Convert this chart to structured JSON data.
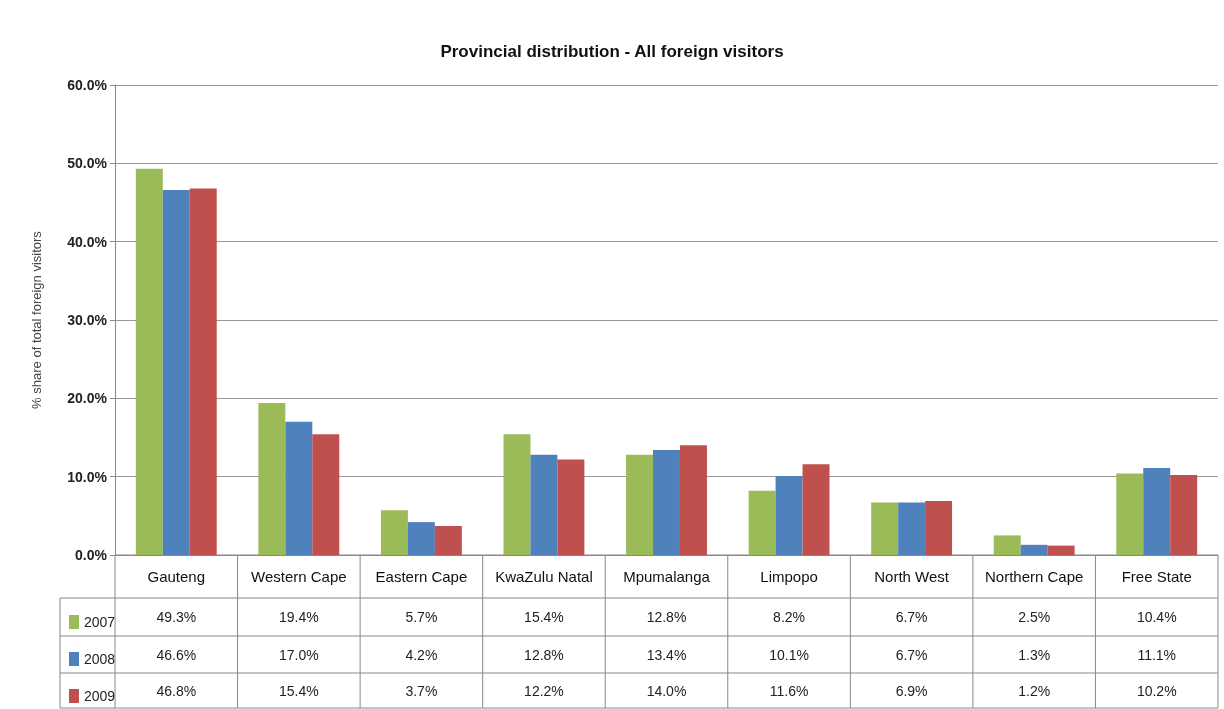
{
  "chart_data": {
    "type": "bar",
    "title": "Provincial distribution - All foreign visitors",
    "ylabel": "% share of total foreign visitors",
    "categories": [
      "Gauteng",
      "Western Cape",
      "Eastern Cape",
      "KwaZulu Natal",
      "Mpumalanga",
      "Limpopo",
      "North West",
      "Northern Cape",
      "Free State"
    ],
    "series": [
      {
        "name": "2007",
        "color": "#9bbb59",
        "values": [
          49.3,
          19.4,
          5.7,
          15.4,
          12.8,
          8.2,
          6.7,
          2.5,
          10.4
        ],
        "value_labels": [
          "49.3%",
          "19.4%",
          "5.7%",
          "15.4%",
          "12.8%",
          "8.2%",
          "6.7%",
          "2.5%",
          "10.4%"
        ]
      },
      {
        "name": "2008",
        "color": "#4f81bd",
        "values": [
          46.6,
          17.0,
          4.2,
          12.8,
          13.4,
          10.1,
          6.7,
          1.3,
          11.1
        ],
        "value_labels": [
          "46.6%",
          "17.0%",
          "4.2%",
          "12.8%",
          "13.4%",
          "10.1%",
          "6.7%",
          "1.3%",
          "11.1%"
        ]
      },
      {
        "name": "2009",
        "color": "#c0504d",
        "values": [
          46.8,
          15.4,
          3.7,
          12.2,
          14.0,
          11.6,
          6.9,
          1.2,
          10.2
        ],
        "value_labels": [
          "46.8%",
          "15.4%",
          "3.7%",
          "12.2%",
          "14.0%",
          "11.6%",
          "6.9%",
          "1.2%",
          "10.2%"
        ]
      }
    ],
    "ylim": [
      0,
      60
    ],
    "yticks": [
      {
        "value": 0,
        "label": "0.0%"
      },
      {
        "value": 10,
        "label": "10.0%"
      },
      {
        "value": 20,
        "label": "20.0%"
      },
      {
        "value": 30,
        "label": "30.0%"
      },
      {
        "value": 40,
        "label": "40.0%"
      },
      {
        "value": 50,
        "label": "50.0%"
      },
      {
        "value": 60,
        "label": "60.0%"
      }
    ],
    "grid": "y",
    "legend": "bottom left"
  }
}
